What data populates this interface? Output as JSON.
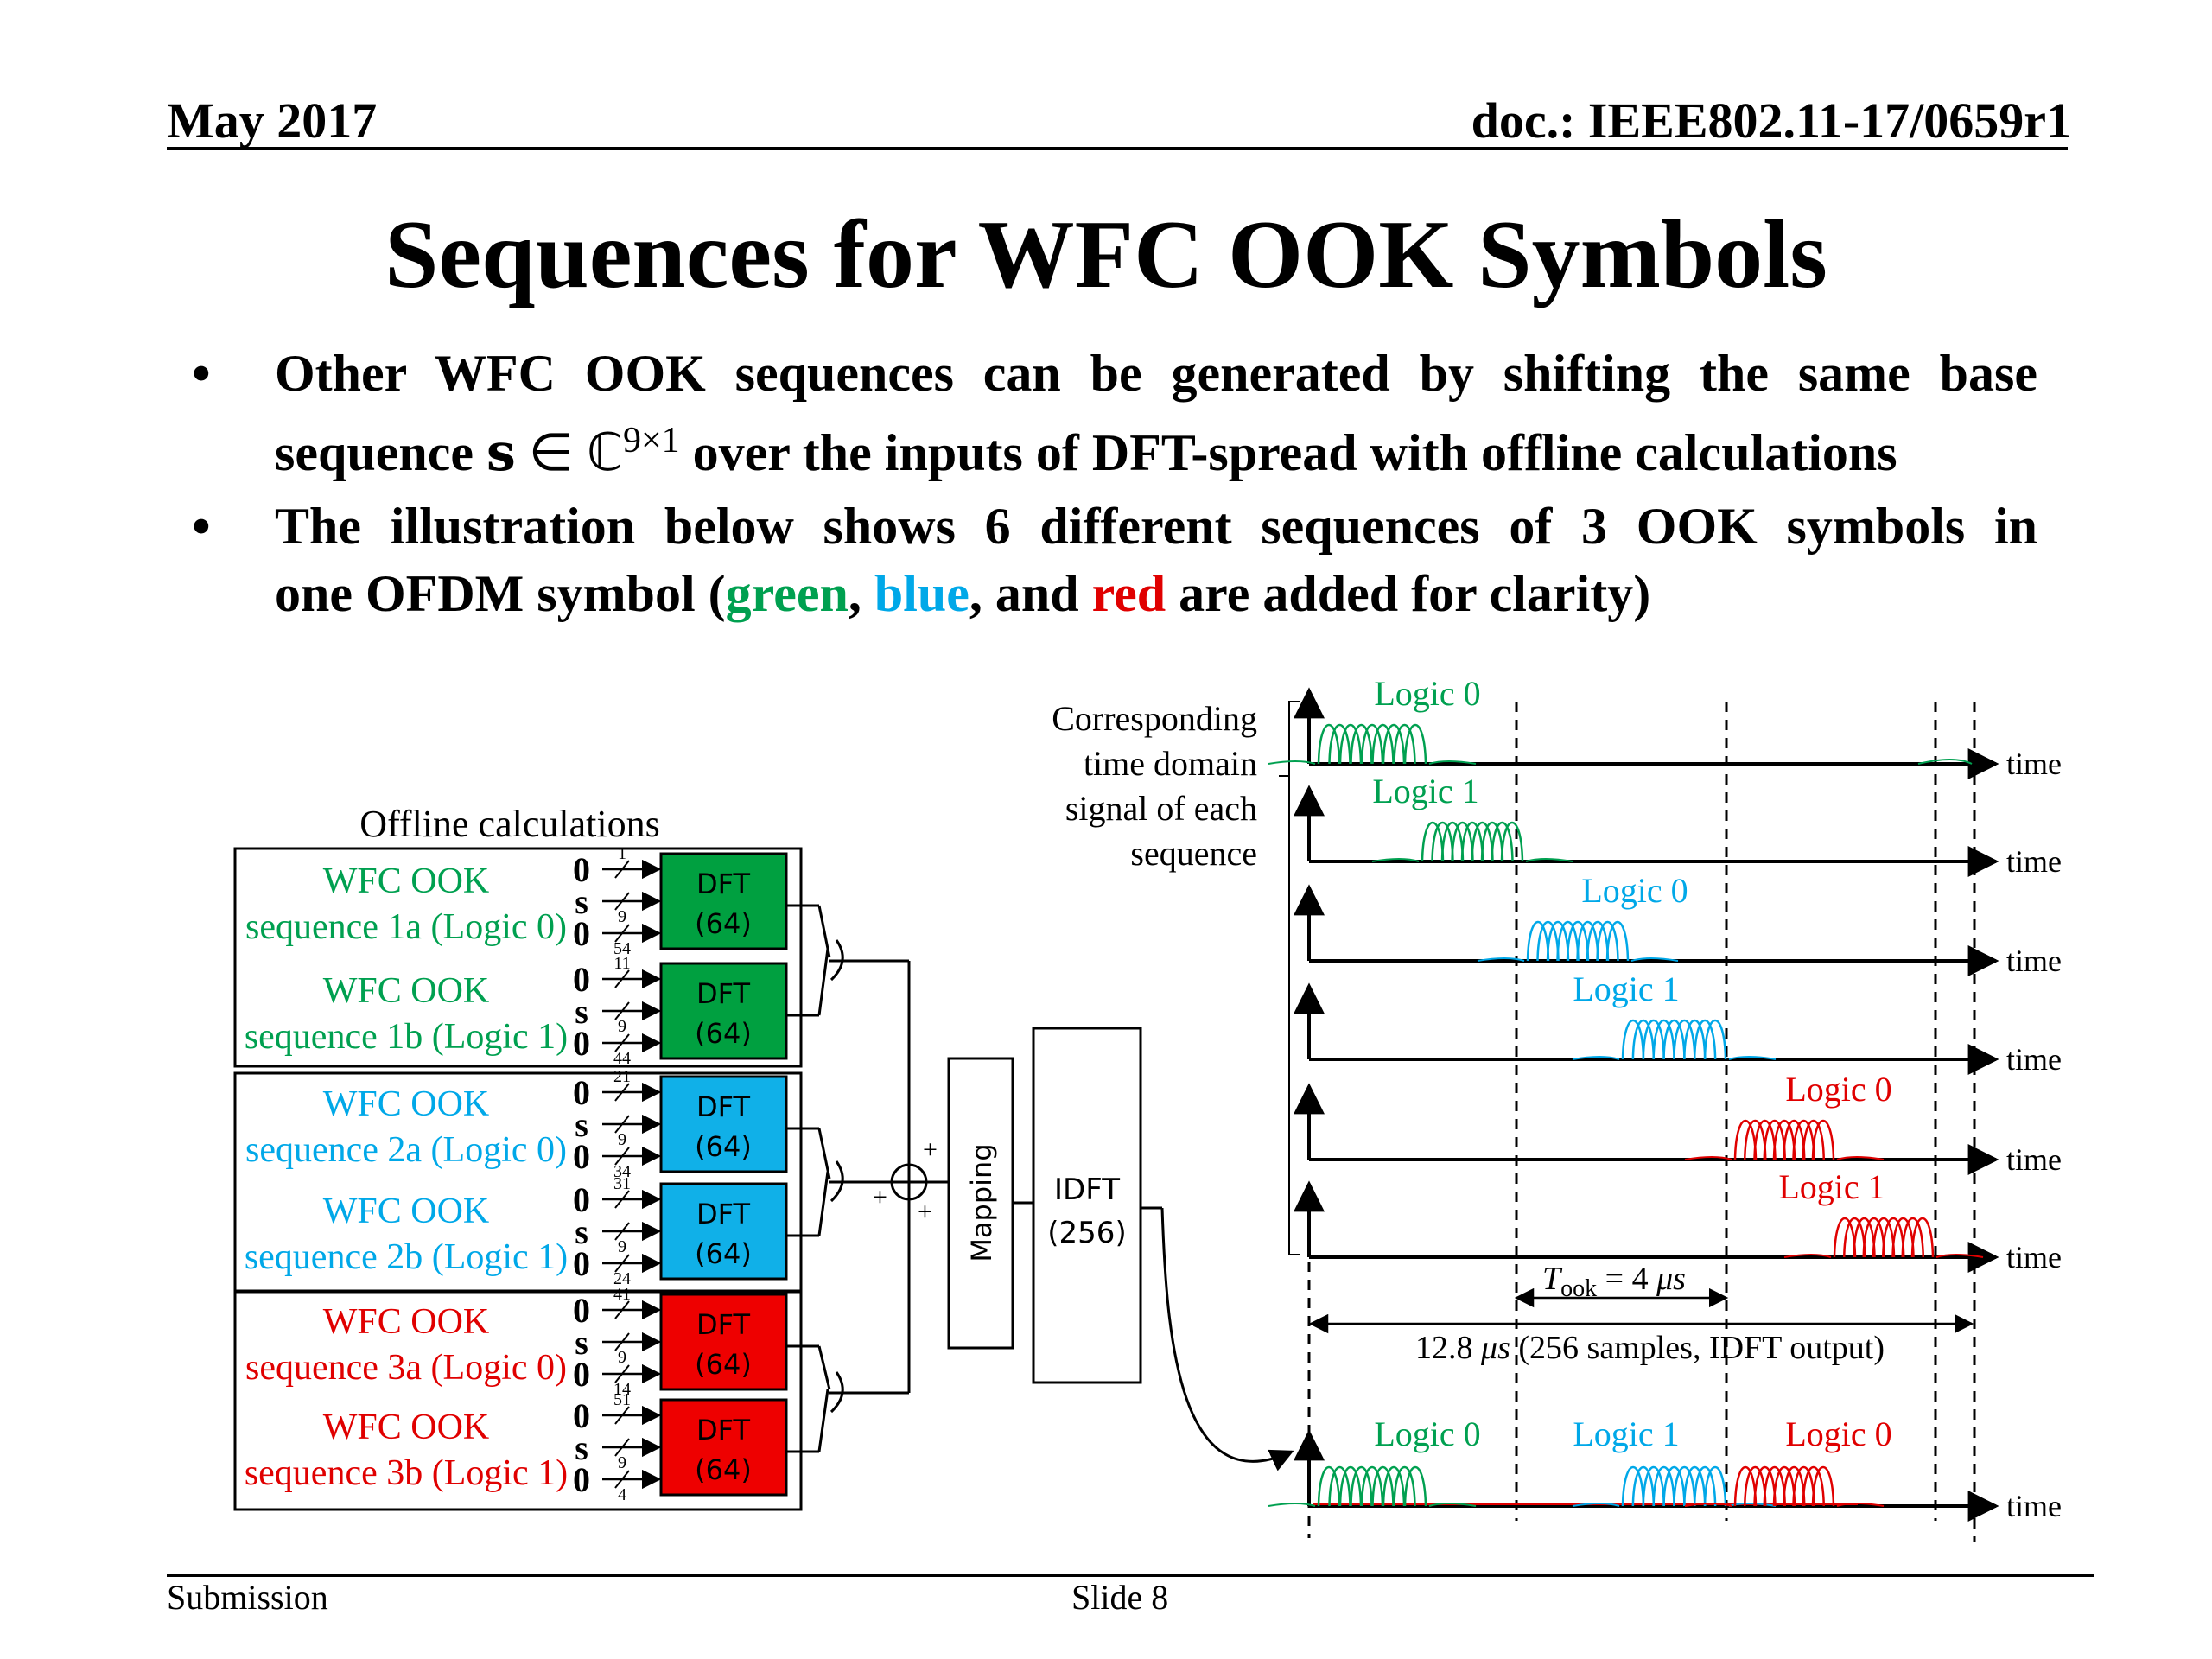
{
  "header": {
    "date": "May 2017",
    "doc": "doc.: IEEE802.11-17/0659r1"
  },
  "title": "Sequences for WFC OOK Symbols",
  "bullets": [
    {
      "line1": "Other WFC OOK sequences can be generated by shifting the same base",
      "line2_a": "sequence ",
      "line2_s": "s",
      "line2_in": " ∈ ℂ",
      "line2_sup": "9×1",
      "line2_b": " over the inputs of DFT-spread with offline calculations"
    },
    {
      "line1": "The illustration below shows 6 different sequences of 3 OOK symbols in",
      "line2_a": "one OFDM symbol (",
      "green": "green",
      "comma": ", ",
      "blue": "blue",
      "and": ", and ",
      "red": "red",
      "line2_b": " are added for clarity)"
    }
  ],
  "colors": {
    "green": "#00a050",
    "blue": "#00a8e8",
    "red": "#e00000",
    "dft_green": "#00a040",
    "dft_blue": "#10b0e8",
    "dft_red": "#ee0000"
  },
  "diagram": {
    "offline_label": "Offline calculations",
    "groups": [
      {
        "color": "green",
        "sequences": [
          {
            "name": "WFC OOK",
            "label": "sequence 1a (Logic 0)",
            "nums": [
              "1",
              "9",
              "54"
            ]
          },
          {
            "name": "WFC OOK",
            "label": "sequence 1b (Logic 1)",
            "nums": [
              "11",
              "9",
              "44"
            ]
          }
        ]
      },
      {
        "color": "blue",
        "sequences": [
          {
            "name": "WFC OOK",
            "label": "sequence 2a (Logic 0)",
            "nums": [
              "21",
              "9",
              "34"
            ]
          },
          {
            "name": "WFC OOK",
            "label": "sequence 2b (Logic 1)",
            "nums": [
              "31",
              "9",
              "24"
            ]
          }
        ]
      },
      {
        "color": "red",
        "sequences": [
          {
            "name": "WFC OOK",
            "label": "sequence 3a (Logic 0)",
            "nums": [
              "41",
              "9",
              "14"
            ]
          },
          {
            "name": "WFC OOK",
            "label": "sequence 3b (Logic 1)",
            "nums": [
              "51",
              "9",
              "4"
            ]
          }
        ]
      }
    ],
    "input_labels": [
      "0",
      "s",
      "0"
    ],
    "dft_label1": "DFT",
    "dft_label2": "(64)",
    "mapping_label": "Mapping",
    "idft_label1": "IDFT",
    "idft_label2": "(256)",
    "plus": "+",
    "corr_label": [
      "Corresponding",
      "time domain",
      "signal of each",
      "sequence"
    ],
    "time_label": "time",
    "rows": [
      {
        "logic": "Logic 0",
        "color": "green"
      },
      {
        "logic": "Logic 1",
        "color": "green"
      },
      {
        "logic": "Logic 0",
        "color": "blue"
      },
      {
        "logic": "Logic 1",
        "color": "blue"
      },
      {
        "logic": "Logic 0",
        "color": "red"
      },
      {
        "logic": "Logic 1",
        "color": "red"
      }
    ],
    "took_T": "T",
    "took_sub": "ook",
    "took_rest": " = 4 ",
    "took_mu": "μs",
    "duration_a": "12.8 ",
    "duration_mu": "μs",
    "duration_b": " (256 samples, IDFT output)",
    "output_logics": [
      {
        "logic": "Logic 0",
        "color": "green"
      },
      {
        "logic": "Logic 1",
        "color": "blue"
      },
      {
        "logic": "Logic 0",
        "color": "red"
      }
    ]
  },
  "footer": {
    "left": "Submission",
    "center": "Slide 8"
  }
}
